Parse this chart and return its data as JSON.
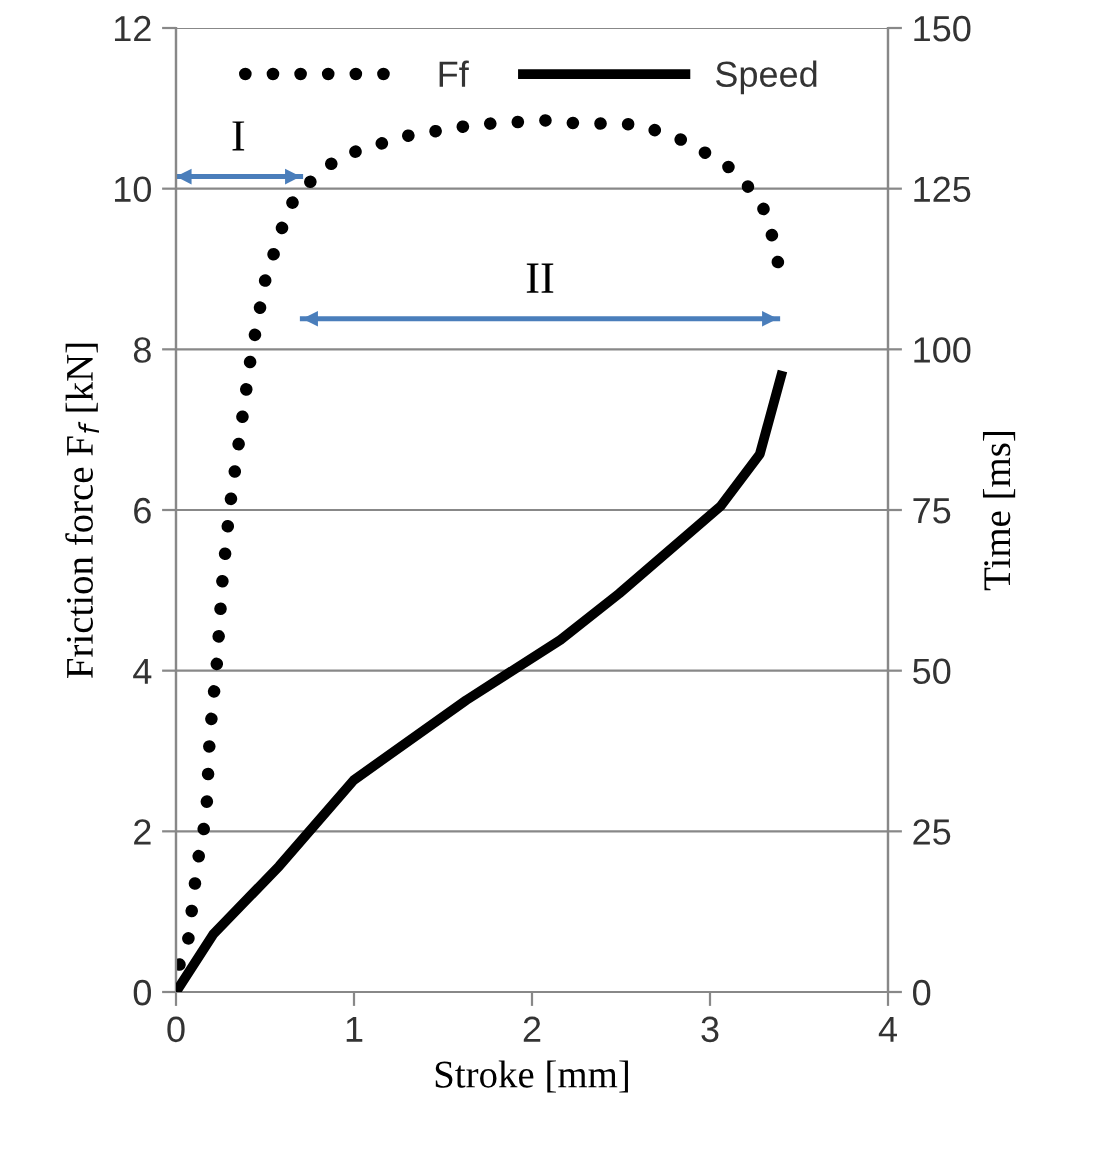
{
  "chart_data": {
    "type": "line",
    "xlabel": "Stroke [mm]",
    "ylabel": "Friction force F$_{f}$ [kN]",
    "y2label": "Time [ms]",
    "xlim": [
      0,
      4
    ],
    "xticks": [
      0,
      1,
      2,
      3,
      4
    ],
    "ylim": [
      0,
      12
    ],
    "yticks": [
      0,
      2,
      4,
      6,
      8,
      10,
      12
    ],
    "y2lim": [
      0,
      150
    ],
    "y2ticks": [
      0,
      25,
      50,
      75,
      100,
      125,
      150
    ],
    "grid": "y",
    "legend": "top",
    "series": [
      {
        "name": "Ff",
        "color": "#000000",
        "line_style": "dotted",
        "x": [
          0,
          0.02,
          0.07,
          0.12,
          0.17,
          0.19,
          0.23,
          0.26,
          0.3,
          0.42,
          0.5,
          0.63,
          0.71,
          0.92,
          1.28,
          1.69,
          2.08,
          2.19,
          2.6,
          2.85,
          3.09,
          3.27,
          3.33,
          3.39
        ],
        "values": [
          0,
          0.35,
          0.67,
          1.6,
          2.2,
          3.2,
          4.1,
          5.1,
          6.0,
          7.9,
          8.85,
          9.75,
          10.0,
          10.4,
          10.65,
          10.8,
          10.85,
          10.82,
          10.8,
          10.6,
          10.3,
          9.9,
          9.6,
          9.0
        ]
      },
      {
        "name": "Speed",
        "axis": "y2",
        "color": "#000000",
        "line_style": "solid",
        "x": [
          0,
          0.21,
          0.58,
          1.0,
          1.63,
          2.16,
          2.49,
          3.06,
          3.28,
          3.4
        ],
        "values": [
          0,
          9,
          19.6,
          33,
          45.4,
          54.8,
          62,
          75.6,
          83.7,
          95.9
        ]
      },
      {
        "color": "#4a7ebb",
        "line_style": "solid",
        "x": [
          0,
          0.7
        ],
        "values": [
          10.15,
          10.15
        ]
      },
      {
        "color": "#4a7ebb",
        "line_style": "solid",
        "x": [
          0.71,
          3.38
        ],
        "values": [
          8.38,
          8.38
        ]
      }
    ],
    "annotations": [
      "I",
      "II"
    ]
  }
}
